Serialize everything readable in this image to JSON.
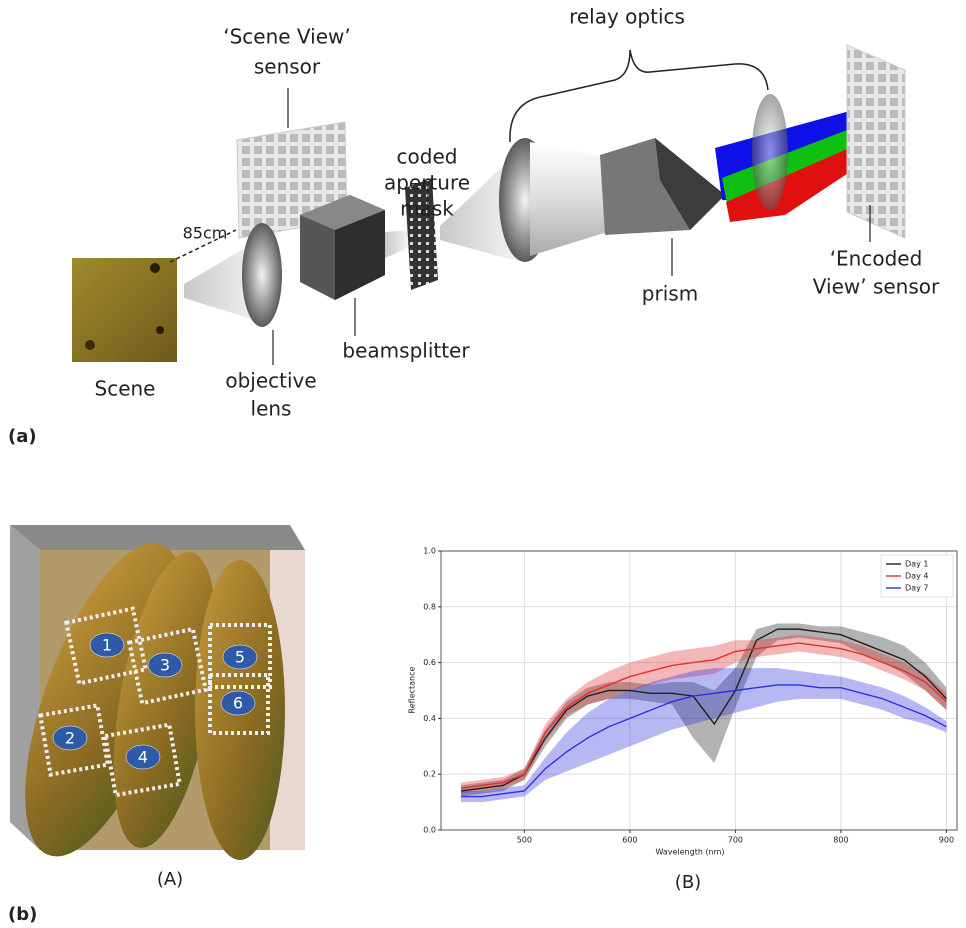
{
  "figure_a": {
    "panel_label": "(a)",
    "labels": {
      "scene_view_sensor": [
        "‘Scene View’",
        "sensor"
      ],
      "coded_aperture_mask": [
        "coded",
        "aperture",
        "mask"
      ],
      "relay_optics": "relay optics",
      "distance": "85cm",
      "scene": "Scene",
      "objective_lens": [
        "objective",
        "lens"
      ],
      "beamsplitter": "beamsplitter",
      "prism": "prism",
      "encoded_view_sensor": [
        "‘Encoded",
        "View’ sensor"
      ]
    }
  },
  "figure_b": {
    "panel_label": "(b)",
    "image_caption": "(A)",
    "chart_caption": "(B)",
    "region_labels": [
      "1",
      "2",
      "3",
      "4",
      "5",
      "6"
    ]
  },
  "chart_data": {
    "type": "line",
    "x_label": "Wavelength (nm)",
    "y_label": "Reflectance",
    "x": [
      440,
      460,
      480,
      500,
      520,
      540,
      560,
      580,
      600,
      620,
      640,
      660,
      680,
      700,
      720,
      740,
      760,
      780,
      800,
      820,
      840,
      860,
      880,
      900
    ],
    "series": [
      {
        "name": "Day 1",
        "color": "#222222",
        "values": [
          0.14,
          0.15,
          0.16,
          0.2,
          0.33,
          0.43,
          0.48,
          0.5,
          0.5,
          0.49,
          0.49,
          0.48,
          0.38,
          0.5,
          0.68,
          0.72,
          0.72,
          0.71,
          0.7,
          0.67,
          0.64,
          0.61,
          0.55,
          0.47
        ],
        "lower": [
          0.12,
          0.13,
          0.14,
          0.18,
          0.3,
          0.4,
          0.45,
          0.47,
          0.47,
          0.46,
          0.45,
          0.33,
          0.24,
          0.44,
          0.62,
          0.68,
          0.69,
          0.68,
          0.67,
          0.63,
          0.6,
          0.56,
          0.5,
          0.43
        ],
        "upper": [
          0.16,
          0.17,
          0.18,
          0.22,
          0.36,
          0.46,
          0.51,
          0.53,
          0.53,
          0.52,
          0.53,
          0.53,
          0.5,
          0.58,
          0.72,
          0.74,
          0.74,
          0.73,
          0.73,
          0.71,
          0.69,
          0.66,
          0.6,
          0.51
        ]
      },
      {
        "name": "Day 4",
        "color": "#e03030",
        "values": [
          0.15,
          0.16,
          0.17,
          0.2,
          0.35,
          0.44,
          0.49,
          0.52,
          0.55,
          0.57,
          0.59,
          0.6,
          0.61,
          0.64,
          0.65,
          0.66,
          0.67,
          0.66,
          0.65,
          0.63,
          0.6,
          0.57,
          0.53,
          0.46
        ],
        "lower": [
          0.13,
          0.14,
          0.15,
          0.18,
          0.32,
          0.41,
          0.45,
          0.47,
          0.5,
          0.52,
          0.54,
          0.55,
          0.56,
          0.6,
          0.62,
          0.63,
          0.64,
          0.63,
          0.62,
          0.6,
          0.57,
          0.54,
          0.5,
          0.43
        ],
        "upper": [
          0.17,
          0.18,
          0.19,
          0.22,
          0.38,
          0.47,
          0.53,
          0.57,
          0.6,
          0.62,
          0.64,
          0.65,
          0.66,
          0.68,
          0.68,
          0.69,
          0.7,
          0.69,
          0.68,
          0.66,
          0.63,
          0.6,
          0.56,
          0.49
        ]
      },
      {
        "name": "Day 7",
        "color": "#3030e0",
        "values": [
          0.12,
          0.12,
          0.13,
          0.14,
          0.22,
          0.28,
          0.33,
          0.37,
          0.4,
          0.43,
          0.46,
          0.48,
          0.49,
          0.5,
          0.51,
          0.52,
          0.52,
          0.51,
          0.51,
          0.49,
          0.47,
          0.44,
          0.41,
          0.37
        ],
        "lower": [
          0.1,
          0.1,
          0.11,
          0.12,
          0.18,
          0.21,
          0.24,
          0.27,
          0.3,
          0.33,
          0.36,
          0.38,
          0.4,
          0.42,
          0.44,
          0.46,
          0.47,
          0.47,
          0.47,
          0.45,
          0.43,
          0.4,
          0.38,
          0.35
        ],
        "upper": [
          0.14,
          0.14,
          0.15,
          0.16,
          0.26,
          0.35,
          0.42,
          0.47,
          0.5,
          0.53,
          0.55,
          0.57,
          0.58,
          0.58,
          0.58,
          0.58,
          0.57,
          0.56,
          0.55,
          0.53,
          0.51,
          0.48,
          0.44,
          0.39
        ]
      }
    ],
    "xlim": [
      421,
      910
    ],
    "ylim": [
      0,
      1
    ],
    "xticks": [
      500,
      600,
      700,
      800,
      900
    ],
    "yticks": [
      {
        "value": 0,
        "label": "0.0"
      },
      0.2,
      0.4,
      0.6,
      0.8,
      {
        "value": 1,
        "label": "1.0"
      }
    ],
    "grid": true,
    "legend": "upper right"
  }
}
